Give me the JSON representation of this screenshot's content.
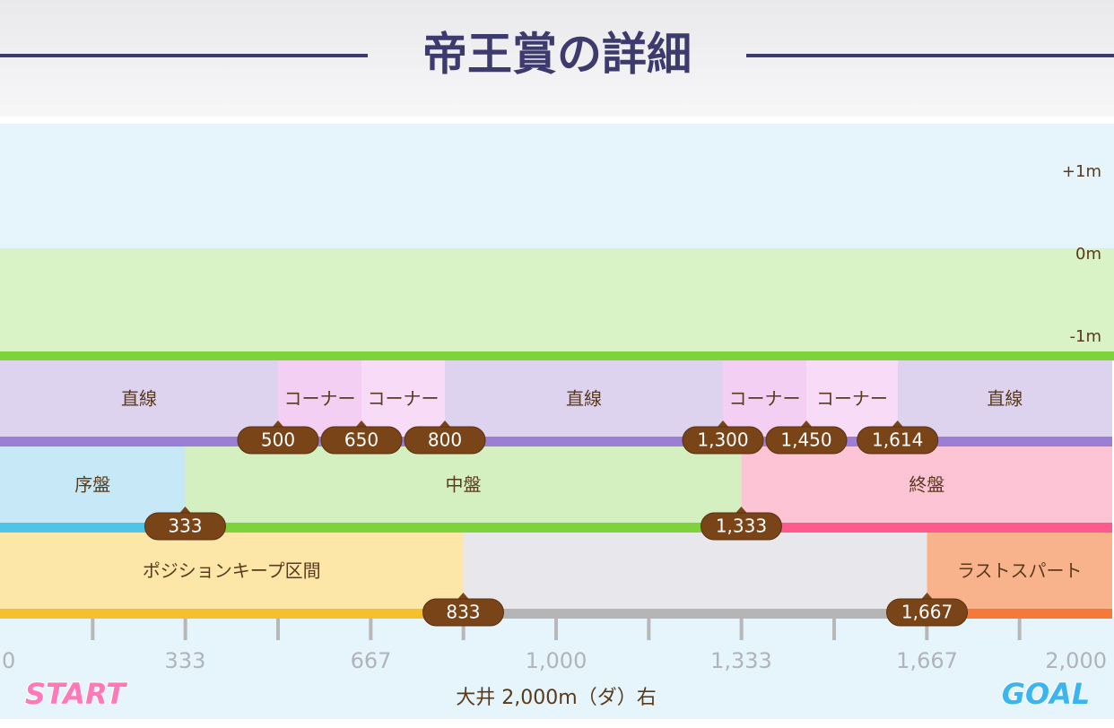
{
  "header": {
    "title": "帝王賞の詳細"
  },
  "elevation": {
    "labels": [
      "+1m",
      "0m",
      "-1m"
    ]
  },
  "track": {
    "sections": [
      "直線",
      "コーナー",
      "コーナー",
      "直線",
      "コーナー",
      "コーナー",
      "直線"
    ],
    "markers": [
      500,
      650,
      800,
      {
        "value": 1300,
        "label": "1,300"
      },
      {
        "value": 1450,
        "label": "1,450"
      },
      {
        "value": 1614,
        "label": "1,614"
      }
    ]
  },
  "phase": {
    "sections": [
      "序盤",
      "中盤",
      "終盤"
    ],
    "markers": [
      333,
      {
        "value": 1333,
        "label": "1,333"
      }
    ]
  },
  "position": {
    "sections": [
      "ポジションキープ区間",
      null,
      "ラストスパート"
    ],
    "markers": [
      833,
      {
        "value": 1667,
        "label": "1,667"
      }
    ]
  },
  "axis": {
    "ticks": [
      0,
      333,
      667,
      {
        "value": 1000,
        "label": "1,000"
      },
      {
        "value": 1333,
        "label": "1,333"
      },
      {
        "value": 1667,
        "label": "1,667"
      },
      {
        "value": 2000,
        "label": "2,000"
      }
    ]
  },
  "footer": {
    "course": "大井 2,000m（ダ）右",
    "start": "START",
    "goal": "GOAL"
  }
}
